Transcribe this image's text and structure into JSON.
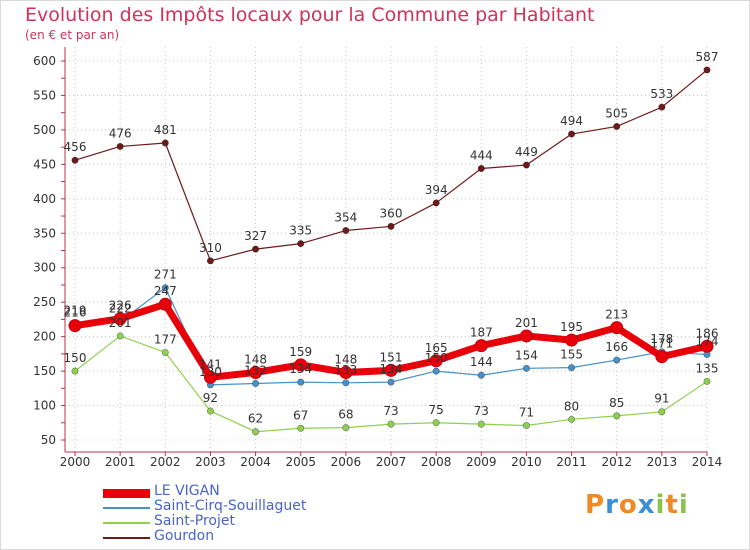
{
  "title": "Evolution des Impôts locaux pour la Commune par Habitant",
  "subtitle": "(en € et par an)",
  "logo": {
    "letters": [
      "P",
      "r",
      "o",
      "x",
      "i",
      "t",
      "i"
    ],
    "colors": [
      "#f08a24",
      "#3a8fd6",
      "#f08a24",
      "#3a8fd6",
      "#8bc34a",
      "#f08a24",
      "#8bc34a"
    ]
  },
  "chart_data": {
    "type": "line",
    "x": [
      "2000",
      "2001",
      "2002",
      "2003",
      "2004",
      "2005",
      "2006",
      "2007",
      "2008",
      "2009",
      "2010",
      "2011",
      "2012",
      "2013",
      "2014"
    ],
    "ylim": [
      50,
      600
    ],
    "yticks": [
      50,
      100,
      150,
      200,
      250,
      300,
      350,
      400,
      450,
      500,
      550,
      600
    ],
    "grid": true,
    "legend_position": "bottom-left",
    "series": [
      {
        "name": "Gourdon",
        "color": "#6d1a1a",
        "values": [
          456,
          476,
          481,
          310,
          327,
          335,
          354,
          360,
          394,
          444,
          449,
          494,
          505,
          533,
          587
        ]
      },
      {
        "name": "Saint-Projet",
        "color": "#8fd14f",
        "values": [
          150,
          201,
          177,
          92,
          62,
          67,
          68,
          73,
          75,
          73,
          71,
          80,
          85,
          91,
          135
        ]
      },
      {
        "name": "Saint-Cirq-Souillaguet",
        "color": "#4a90c8",
        "values": [
          219,
          222,
          271,
          130,
          132,
          134,
          133,
          134,
          150,
          144,
          154,
          155,
          166,
          178,
          174
        ]
      },
      {
        "name": "LE VIGAN",
        "color": "#e8000b",
        "values": [
          216,
          226,
          247,
          141,
          148,
          159,
          148,
          151,
          165,
          187,
          201,
          195,
          213,
          171,
          186
        ]
      }
    ],
    "legend_order": [
      "LE VIGAN",
      "Saint-Cirq-Souillaguet",
      "Saint-Projet",
      "Gourdon"
    ]
  }
}
